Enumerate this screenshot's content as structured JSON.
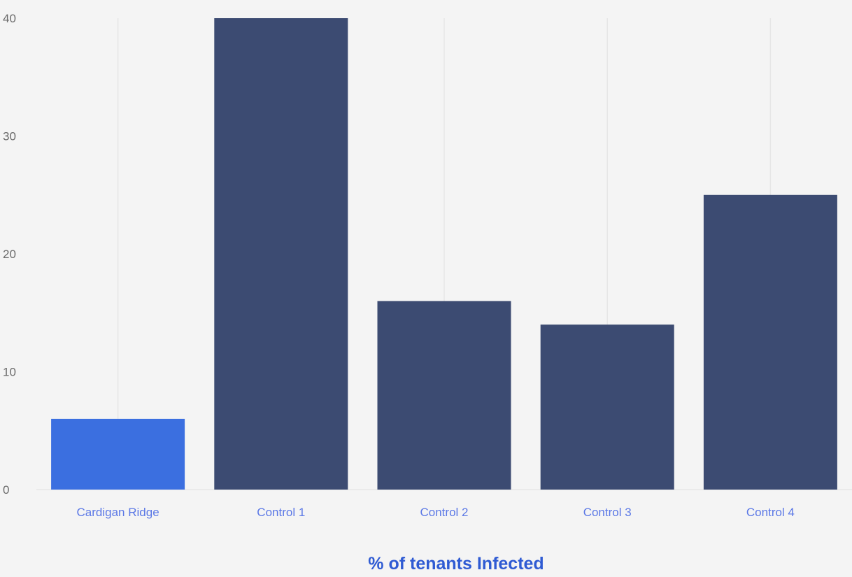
{
  "chart_data": {
    "type": "bar",
    "categories": [
      "Cardigan Ridge",
      "Control 1",
      "Control 2",
      "Control 3",
      "Control 4"
    ],
    "values": [
      6,
      40,
      16,
      14,
      25
    ],
    "xlabel": "% of tenants Infected",
    "ylabel": "",
    "ylim": [
      0,
      40
    ],
    "yticks": [
      0,
      10,
      20,
      30,
      40
    ],
    "grid": "vertical",
    "colors": {
      "highlight": "#3b6fe0",
      "default": "#3c4b72",
      "grid": "#e6e6e6",
      "category_text": "#5b78e6",
      "title_text": "#2f5bd3"
    }
  }
}
